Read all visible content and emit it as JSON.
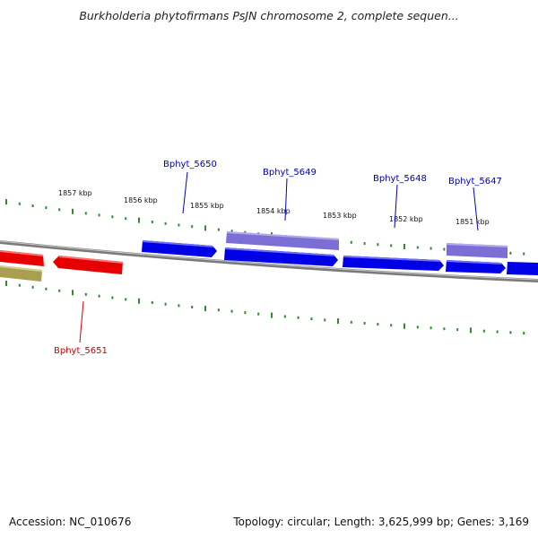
{
  "title": "Burkholderia phytofirmans PsJN chromosome 2, complete sequen...",
  "footer": {
    "accession": "Accession: NC_010676",
    "summary": "Topology: circular; Length: 3,625,999 bp; Genes: 3,169"
  },
  "colors": {
    "forward_gene": "#0000e6",
    "forward_gene_alt": "#7b6fd6",
    "reverse_gene": "#e60000",
    "reverse_gene_alt": "#a8a050",
    "backbone": "#888888",
    "ticks": "#2e8b2e",
    "forward_label": "#0000aa",
    "reverse_label": "#cc0000"
  },
  "scale": {
    "tick_labels": [
      "1857 kbp",
      "1856 kbp",
      "1855 kbp",
      "1854 kbp",
      "1853 kbp",
      "1852 kbp",
      "1851 kbp"
    ]
  },
  "genes": [
    {
      "label": "Bphyt_5650",
      "strand": "forward"
    },
    {
      "label": "Bphyt_5649",
      "strand": "forward"
    },
    {
      "label": "Bphyt_5648",
      "strand": "forward"
    },
    {
      "label": "Bphyt_5647",
      "strand": "forward"
    },
    {
      "label": "Bphyt_5651",
      "strand": "reverse"
    }
  ]
}
